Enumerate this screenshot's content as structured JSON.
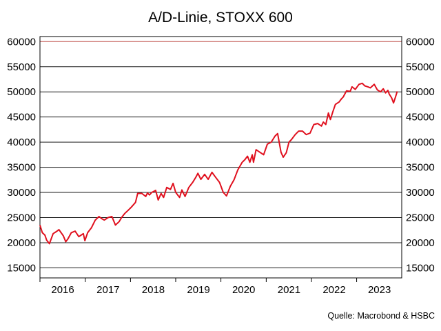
{
  "chart_data": {
    "type": "line",
    "title": "A/D-Linie, STOXX 600",
    "source": "Quelle: Macrobond & HSBC",
    "xlabel": "",
    "ylabel": "",
    "ylim": [
      13000,
      61000
    ],
    "xlim": [
      "2015-07-01",
      "2023-06-30"
    ],
    "y_ticks": [
      "15000",
      "20000",
      "25000",
      "30000",
      "35000",
      "40000",
      "45000",
      "50000",
      "55000",
      "60000"
    ],
    "x_ticks": [
      "2016",
      "2017",
      "2018",
      "2019",
      "2020",
      "2021",
      "2022",
      "2023"
    ],
    "x_tick_dates": [
      "2016-01-01",
      "2017-01-01",
      "2018-01-01",
      "2019-01-01",
      "2020-01-01",
      "2021-01-01",
      "2022-01-01",
      "2023-01-01"
    ],
    "x_period_separators": [
      "2015-07-01",
      "2016-07-01",
      "2017-07-01",
      "2018-07-01",
      "2019-07-01",
      "2020-07-01",
      "2021-07-01",
      "2022-07-01"
    ],
    "grid": true,
    "line_color": "#e0101e",
    "series": [
      {
        "x": [
          "2015-07-01",
          "2015-07-20",
          "2015-08-10",
          "2015-08-24",
          "2015-09-15",
          "2015-10-15",
          "2015-11-10",
          "2015-12-01",
          "2016-01-05",
          "2016-01-25",
          "2016-02-10",
          "2016-03-10",
          "2016-04-10",
          "2016-05-10",
          "2016-06-15",
          "2016-06-28",
          "2016-07-20",
          "2016-08-20",
          "2016-09-20",
          "2016-10-20",
          "2016-11-10",
          "2016-12-01",
          "2017-01-01",
          "2017-02-01",
          "2017-03-01",
          "2017-04-01",
          "2017-04-20",
          "2017-05-15",
          "2017-06-10",
          "2017-07-05",
          "2017-08-10",
          "2017-08-28",
          "2017-10-01",
          "2017-11-01",
          "2017-11-15",
          "2017-12-01",
          "2017-12-20",
          "2018-01-20",
          "2018-02-10",
          "2018-03-05",
          "2018-03-25",
          "2018-04-20",
          "2018-05-20",
          "2018-06-10",
          "2018-07-01",
          "2018-08-01",
          "2018-08-20",
          "2018-09-15",
          "2018-10-15",
          "2018-11-15",
          "2018-12-10",
          "2018-12-27",
          "2019-01-20",
          "2019-02-20",
          "2019-03-20",
          "2019-04-20",
          "2019-05-20",
          "2019-06-20",
          "2019-07-20",
          "2019-08-15",
          "2019-09-15",
          "2019-10-15",
          "2019-11-15",
          "2019-12-20",
          "2020-01-10",
          "2020-02-01",
          "2020-02-20",
          "2020-03-10",
          "2020-03-20",
          "2020-04-10",
          "2020-05-10",
          "2020-06-10",
          "2020-07-10",
          "2020-08-10",
          "2020-09-10",
          "2020-10-01",
          "2020-10-28",
          "2020-11-15",
          "2020-12-10",
          "2021-01-01",
          "2021-01-20",
          "2021-02-20",
          "2021-03-20",
          "2021-04-20",
          "2021-05-20",
          "2021-06-20",
          "2021-07-20",
          "2021-08-20",
          "2021-09-20",
          "2021-10-05",
          "2021-10-25",
          "2021-11-15",
          "2021-12-01",
          "2021-12-20",
          "2022-01-10",
          "2022-02-10",
          "2022-02-25",
          "2022-03-15",
          "2022-04-10",
          "2022-05-10",
          "2022-05-25",
          "2022-06-20",
          "2022-07-20",
          "2022-08-15",
          "2022-09-05",
          "2022-09-30",
          "2022-10-20",
          "2022-11-20",
          "2022-12-15",
          "2023-01-10",
          "2023-02-01",
          "2023-02-20",
          "2023-03-10",
          "2023-03-20",
          "2023-04-10",
          "2023-04-25",
          "2023-05-10",
          "2023-05-25"
        ],
        "y": [
          23500,
          22000,
          21500,
          20500,
          19800,
          21800,
          22200,
          22600,
          21400,
          20200,
          20700,
          22000,
          22300,
          21200,
          21800,
          20400,
          22000,
          23000,
          24500,
          25200,
          24800,
          24500,
          25000,
          25200,
          23500,
          24200,
          25000,
          25800,
          26400,
          27000,
          28000,
          29800,
          29800,
          29200,
          29900,
          29500,
          30000,
          30400,
          28500,
          29800,
          29000,
          31000,
          30600,
          31800,
          30000,
          29000,
          30500,
          29200,
          31000,
          32000,
          33000,
          33800,
          32600,
          33600,
          32600,
          34000,
          33000,
          32000,
          30000,
          29300,
          31200,
          32500,
          34500,
          36000,
          36500,
          37200,
          36000,
          37500,
          36000,
          38500,
          38000,
          37500,
          39600,
          40000,
          41200,
          41700,
          38000,
          37000,
          37900,
          40000,
          40500,
          41500,
          42200,
          42200,
          41500,
          41800,
          43500,
          43700,
          43200,
          44000,
          43500,
          45800,
          44500,
          46000,
          47500,
          48000,
          48500,
          49000,
          50200,
          50100,
          51000,
          50500,
          51500,
          51700,
          51200,
          51000,
          50800,
          51500,
          50400,
          50000,
          50600,
          49800,
          50300,
          49600,
          48800,
          47800,
          48900,
          50100
        ]
      }
    ]
  }
}
